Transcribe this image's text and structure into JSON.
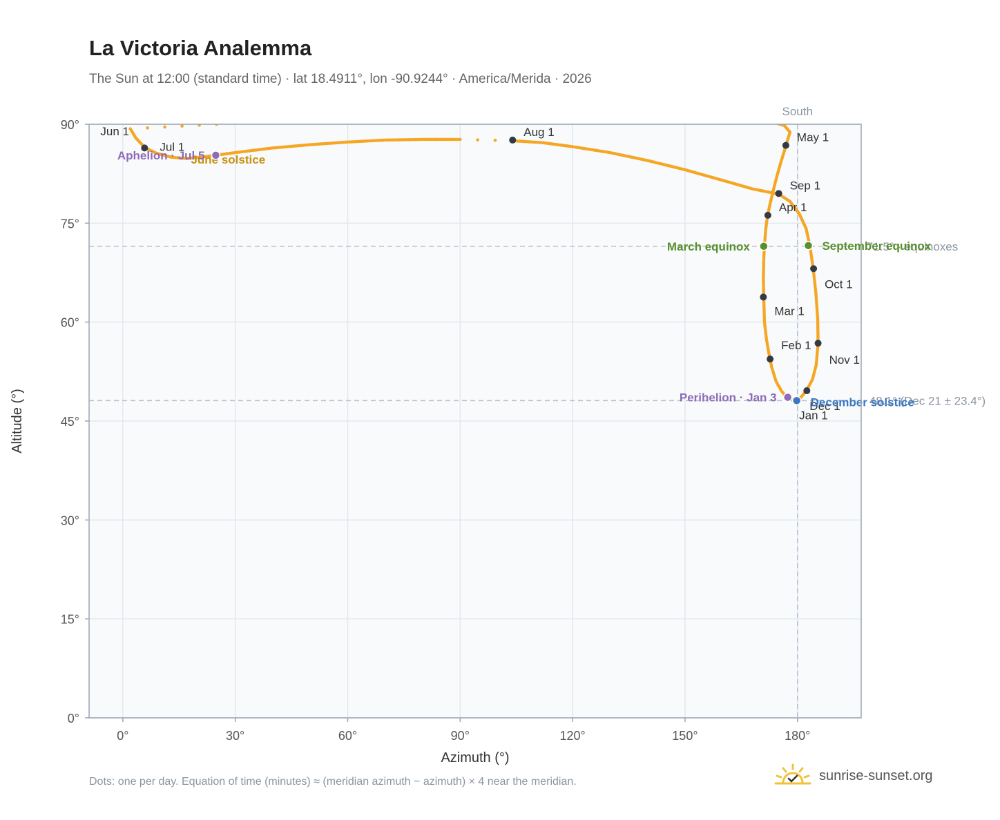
{
  "header": {
    "title": "La Victoria Analemma",
    "subtitle": "The Sun at 12:00 (standard time) · lat 18.4911°, lon -90.9244° · America/Merida · 2026"
  },
  "footer": {
    "note": "Dots: one per day. Equation of time (minutes) ≈ (meridian azimuth − azimuth) × 4 near the meridian.",
    "brand": "sunrise-sunset.org"
  },
  "colors": {
    "curve": "#f5a623",
    "month": "#333a44",
    "equinox": "#5a8f2e",
    "solstice_summer": "#c8920e",
    "solstice_winter": "#3b78c2",
    "apsis": "#8e6bb8",
    "plot_bg": "#f8fafc",
    "grid": "#e3e8ee",
    "frame": "#9aa5b4",
    "ref": "#b7c0cc"
  },
  "chart_data": {
    "type": "scatter",
    "title": "La Victoria Analemma",
    "xlabel": "Azimuth (°)",
    "ylabel": "Altitude (°)",
    "xlim": [
      -9,
      197
    ],
    "ylim": [
      0,
      90
    ],
    "x_ticks": [
      0,
      30,
      60,
      90,
      120,
      150,
      180
    ],
    "y_ticks": [
      0,
      15,
      30,
      45,
      60,
      75,
      90
    ],
    "x_tick_labels": [
      "0°",
      "30°",
      "60°",
      "90°",
      "120°",
      "150°",
      "180°"
    ],
    "y_tick_labels": [
      "0°",
      "15°",
      "30°",
      "45°",
      "60°",
      "75°",
      "90°"
    ],
    "grid": true,
    "path": [
      [
        179.8,
        48.2
      ],
      [
        178.6,
        48.2
      ],
      [
        177.4,
        48.5
      ],
      [
        175.8,
        49.5
      ],
      [
        174.3,
        51.0
      ],
      [
        173.1,
        53.2
      ],
      [
        172.3,
        55.5
      ],
      [
        171.7,
        57.5
      ],
      [
        171.2,
        60.0
      ],
      [
        171.0,
        63.8
      ],
      [
        170.9,
        66.5
      ],
      [
        171.0,
        69.5
      ],
      [
        171.2,
        71.6
      ],
      [
        171.5,
        73.9
      ],
      [
        172.0,
        76.1
      ],
      [
        172.8,
        78.2
      ],
      [
        173.6,
        80.1
      ],
      [
        174.5,
        82.1
      ],
      [
        175.5,
        84.1
      ],
      [
        176.9,
        86.7
      ],
      [
        178.0,
        88.8
      ],
      [
        176.5,
        89.8
      ],
      [
        173.0,
        90.4
      ],
      [
        165.0,
        91.5
      ],
      [
        150.0,
        92.8
      ],
      [
        140.0,
        93.5
      ],
      [
        2.0,
        89.3
      ],
      [
        3.5,
        87.9
      ],
      [
        6.0,
        86.4
      ],
      [
        9.0,
        85.6
      ],
      [
        13.0,
        85.0
      ],
      [
        17.0,
        84.8
      ],
      [
        21.0,
        85.0
      ],
      [
        24.8,
        85.3
      ],
      [
        30.0,
        85.7
      ],
      [
        40.0,
        86.4
      ],
      [
        50.0,
        86.9
      ],
      [
        60.0,
        87.3
      ],
      [
        70.0,
        87.6
      ],
      [
        80.0,
        87.7
      ],
      [
        90.0,
        87.7
      ],
      [
        104.0,
        87.5
      ],
      [
        112.0,
        87.2
      ],
      [
        120.0,
        86.6
      ],
      [
        130.0,
        85.7
      ],
      [
        140.0,
        84.5
      ],
      [
        150.0,
        83.1
      ],
      [
        160.0,
        81.5
      ],
      [
        168.0,
        80.2
      ],
      [
        175.0,
        79.4
      ],
      [
        178.0,
        78.3
      ],
      [
        180.5,
        76.4
      ],
      [
        182.3,
        74.2
      ],
      [
        183.3,
        71.6
      ],
      [
        184.2,
        68.1
      ],
      [
        184.9,
        64.5
      ],
      [
        185.4,
        60.5
      ],
      [
        185.5,
        56.8
      ],
      [
        185.0,
        53.5
      ],
      [
        184.0,
        51.3
      ],
      [
        182.4,
        49.6
      ],
      [
        180.6,
        48.4
      ],
      [
        179.8,
        48.2
      ]
    ],
    "months": [
      {
        "label": "Jan 1",
        "x": 179.7,
        "y": 48.2
      },
      {
        "label": "Feb 1",
        "x": 172.7,
        "y": 54.4
      },
      {
        "label": "Mar 1",
        "x": 170.9,
        "y": 63.8
      },
      {
        "label": "Apr 1",
        "x": 172.1,
        "y": 76.2
      },
      {
        "label": "May 1",
        "x": 176.9,
        "y": 86.8
      },
      {
        "label": "Jun 1",
        "x": 2.5,
        "y": 90.5
      },
      {
        "label": "Jul 1",
        "x": 5.8,
        "y": 86.4
      },
      {
        "label": "Aug 1",
        "x": 104.0,
        "y": 87.6
      },
      {
        "label": "Sep 1",
        "x": 175.0,
        "y": 79.5
      },
      {
        "label": "Oct 1",
        "x": 184.3,
        "y": 68.1
      },
      {
        "label": "Nov 1",
        "x": 185.5,
        "y": 56.8
      },
      {
        "label": "Dec 1",
        "x": 182.5,
        "y": 49.6
      }
    ],
    "events": [
      {
        "label": "March equinox",
        "x": 171.0,
        "y": 71.5,
        "color_key": "equinox"
      },
      {
        "label": "September equinox",
        "x": 182.9,
        "y": 71.6,
        "color_key": "equinox"
      },
      {
        "label": "June solstice",
        "x": 24.8,
        "y": 85.3,
        "color_key": "solstice_summer"
      },
      {
        "label": "December solstice",
        "x": 179.8,
        "y": 48.1,
        "color_key": "solstice_winter"
      },
      {
        "label": "Aphelion · Jul 5",
        "x": 24.8,
        "y": 85.3,
        "color_key": "apsis"
      },
      {
        "label": "Perihelion · Jan 3",
        "x": 177.4,
        "y": 48.6,
        "color_key": "apsis"
      }
    ],
    "reference": {
      "meridian_x": 180,
      "meridian_label": "South",
      "equinox_y": 71.5,
      "equinox_label": "71.5° · equinoxes",
      "winter_y": 48.1,
      "winter_label": "48.1° (Dec 21 ± 23.4°)"
    }
  }
}
